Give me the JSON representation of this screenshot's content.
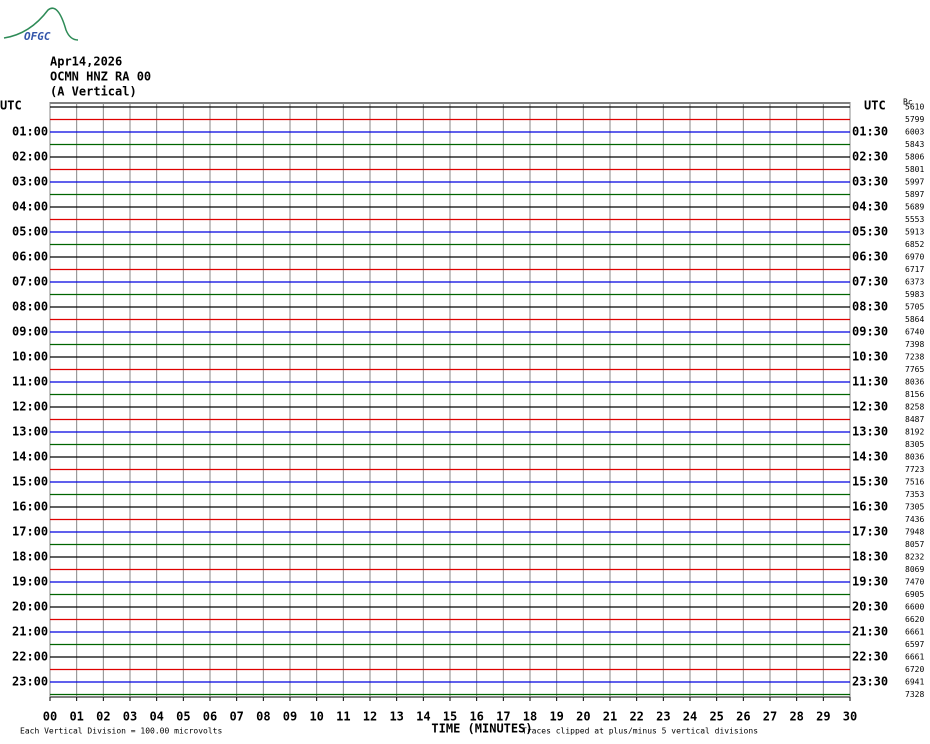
{
  "chart_data": {
    "type": "helicorder",
    "logo": "OFGC",
    "title_lines": [
      "Apr14,2026",
      "OCMN HNZ RA 00",
      "(A Vertical)"
    ],
    "left_header": "UTC",
    "right_header": "UTC",
    "value_header": "Bc",
    "left_labels": [
      "01:00",
      "02:00",
      "03:00",
      "04:00",
      "05:00",
      "06:00",
      "07:00",
      "08:00",
      "09:00",
      "10:00",
      "11:00",
      "12:00",
      "13:00",
      "14:00",
      "15:00",
      "16:00",
      "17:00",
      "18:00",
      "19:00",
      "20:00",
      "21:00",
      "22:00",
      "23:00"
    ],
    "right_labels": [
      "01:30",
      "02:30",
      "03:30",
      "04:30",
      "05:30",
      "06:30",
      "07:30",
      "08:30",
      "09:30",
      "10:30",
      "11:30",
      "12:30",
      "13:30",
      "14:30",
      "15:30",
      "16:30",
      "17:30",
      "18:30",
      "19:30",
      "20:30",
      "21:30",
      "22:30",
      "23:30"
    ],
    "trace_colors": [
      "#000000",
      "#e00000",
      "#0000e0",
      "#006400"
    ],
    "trace_values": [
      5610,
      5799,
      6003,
      5843,
      5806,
      5801,
      5997,
      5897,
      5689,
      5553,
      5913,
      6852,
      6970,
      6717,
      6373,
      5983,
      5705,
      5864,
      6740,
      7398,
      7238,
      7765,
      8036,
      8156,
      8258,
      8487,
      8192,
      8305,
      8036,
      7723,
      7516,
      7353,
      7305,
      7436,
      7948,
      8057,
      8232,
      8069,
      7470,
      6905,
      6600,
      6620,
      6661,
      6597,
      6661,
      6720,
      6941,
      7328
    ],
    "xlim": [
      0,
      30
    ],
    "xticks": [
      {
        "value": 0,
        "label": "00"
      },
      {
        "value": 1,
        "label": "01"
      },
      {
        "value": 2,
        "label": "02"
      },
      {
        "value": 3,
        "label": "03"
      },
      {
        "value": 4,
        "label": "04"
      },
      {
        "value": 5,
        "label": "05"
      },
      {
        "value": 6,
        "label": "06"
      },
      {
        "value": 7,
        "label": "07"
      },
      {
        "value": 8,
        "label": "08"
      },
      {
        "value": 9,
        "label": "09"
      },
      10,
      11,
      12,
      13,
      14,
      15,
      16,
      17,
      18,
      19,
      20,
      21,
      22,
      23,
      24,
      25,
      26,
      27,
      28,
      29,
      30
    ],
    "xlabel": "TIME (MINUTES)",
    "footer_left": "Each Vertical Division =  100.00 microvolts",
    "footer_right": "Traces clipped at plus/minus 5 vertical divisions",
    "grid": true
  }
}
